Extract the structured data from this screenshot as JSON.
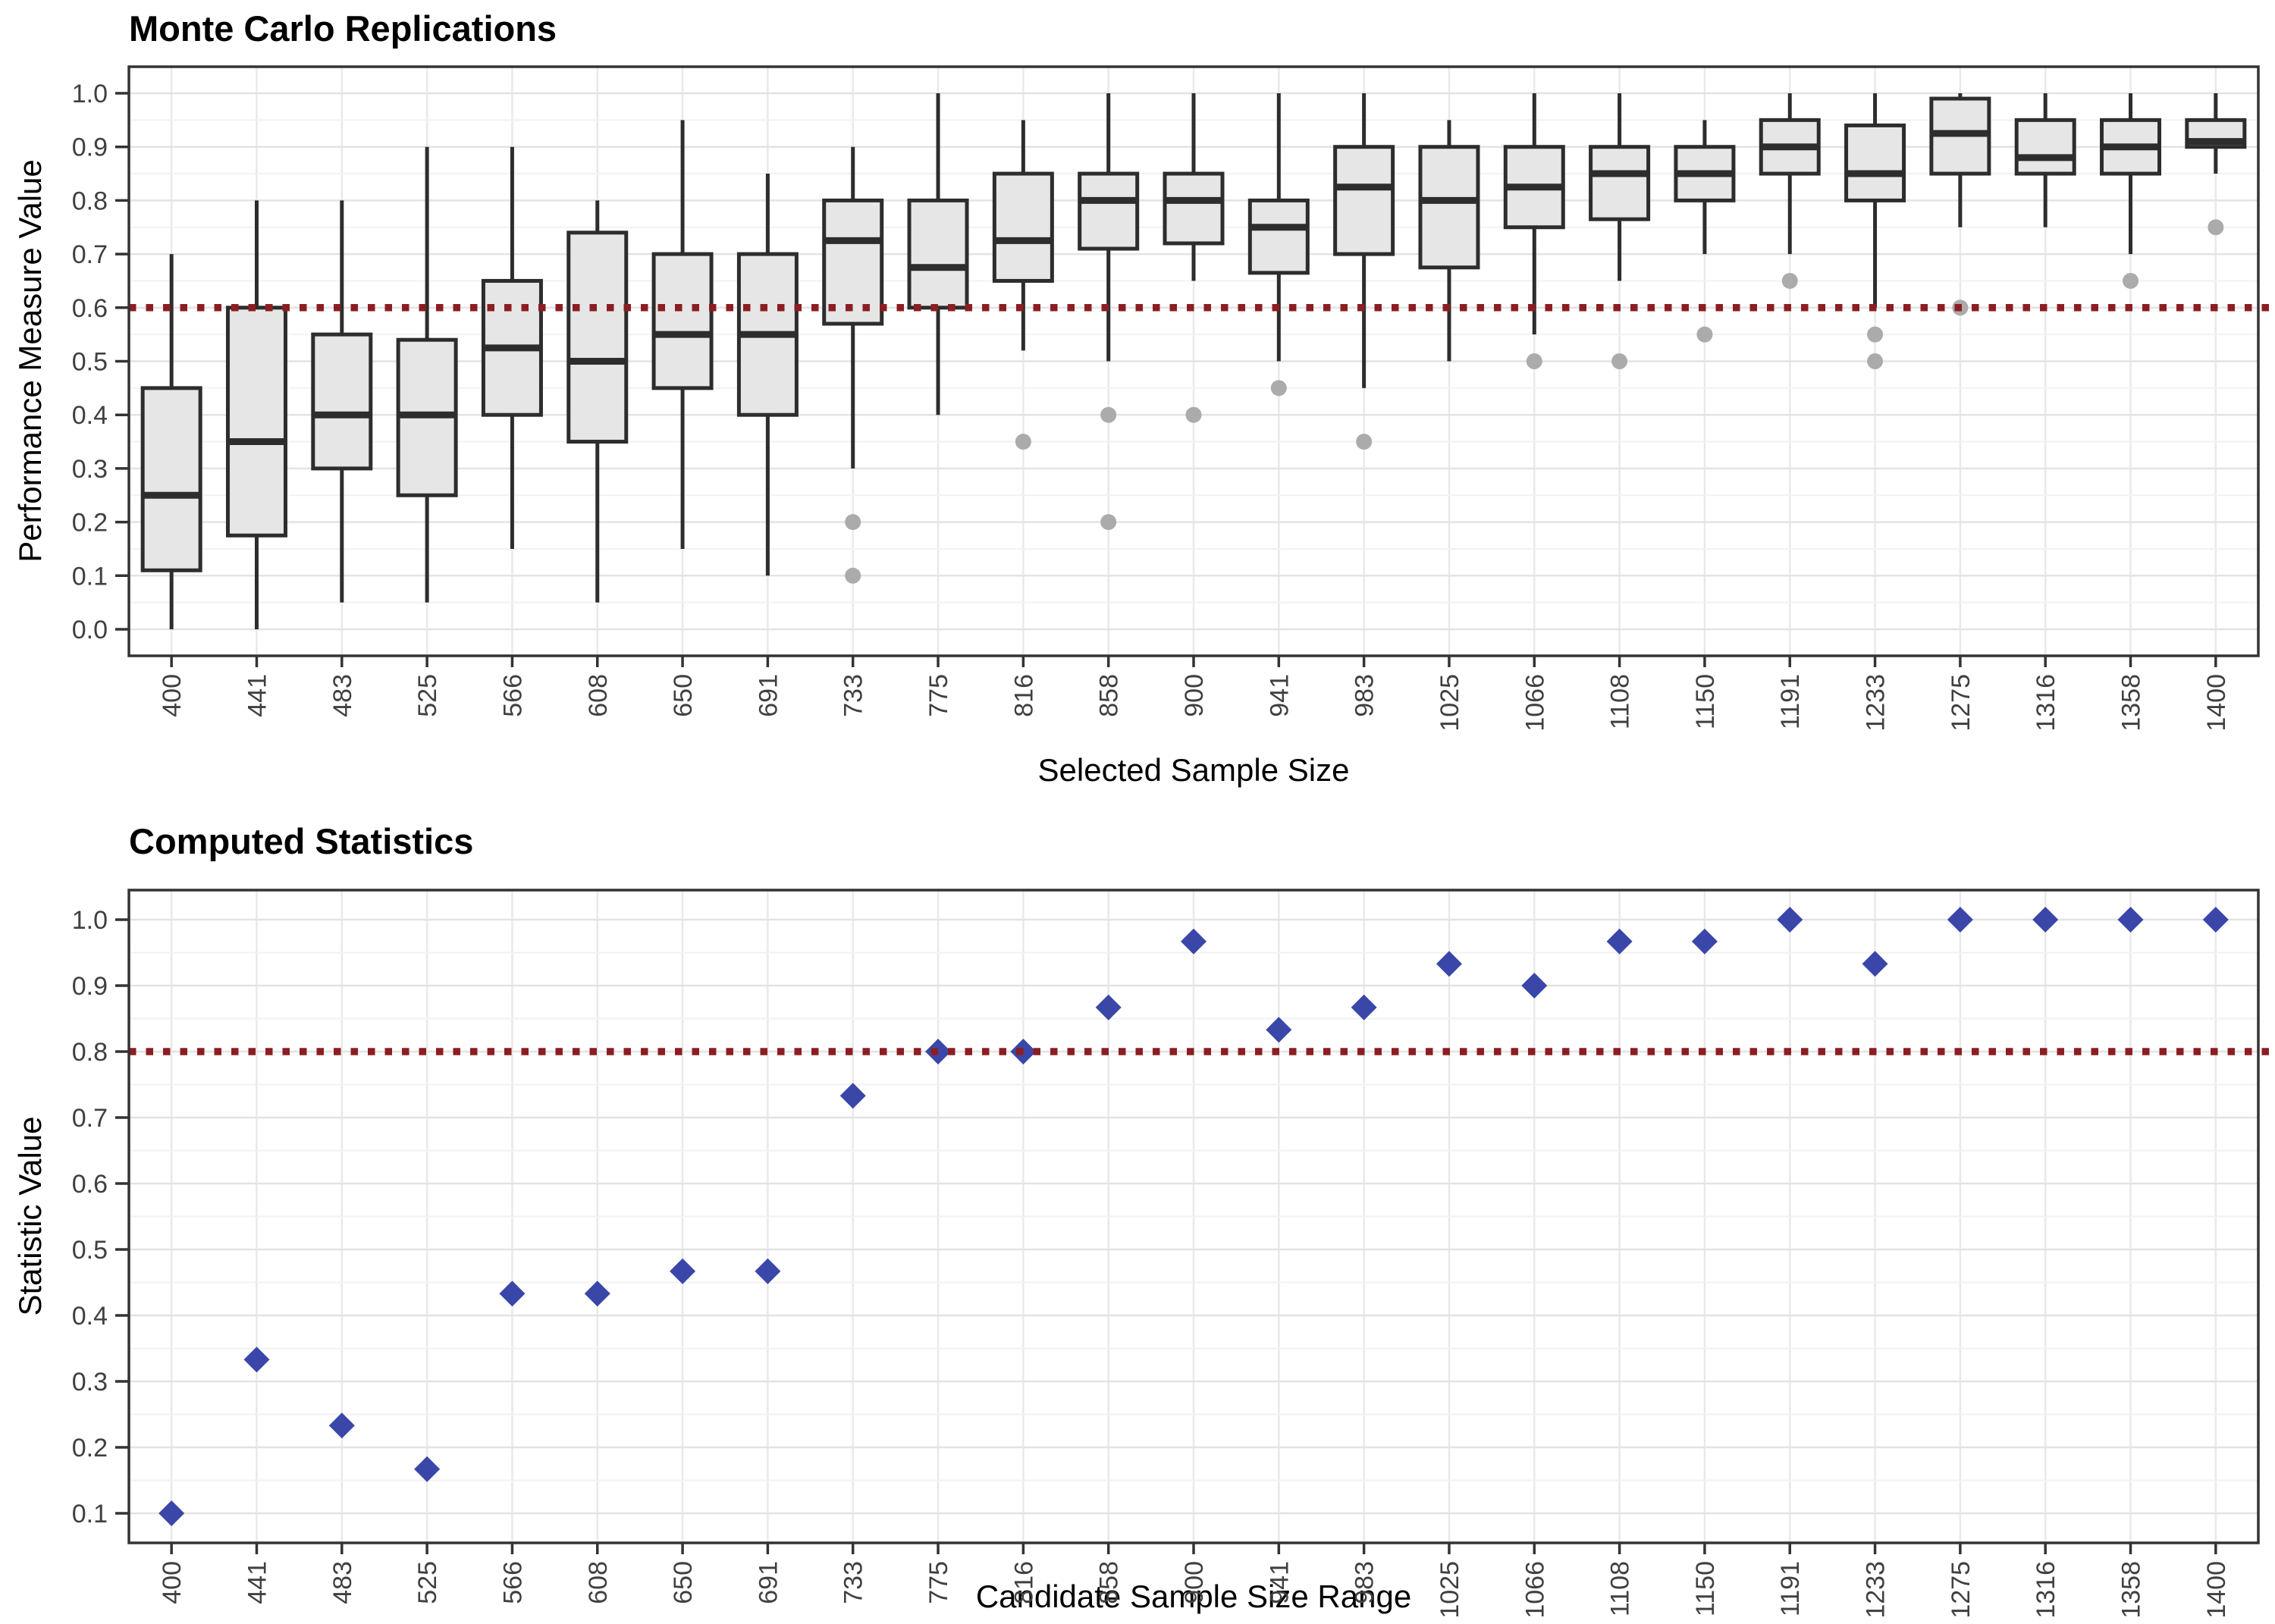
{
  "chart_data": [
    {
      "type": "boxplot",
      "title": "Monte Carlo Replications",
      "xlabel": "Selected Sample Size",
      "ylabel": "Performance Measure Value",
      "ylim": [
        0.0,
        1.0
      ],
      "yticks": [
        0.0,
        0.1,
        0.2,
        0.3,
        0.4,
        0.5,
        0.6,
        0.7,
        0.8,
        0.9,
        1.0
      ],
      "grid": "major and minor horizontal, vertical at categories",
      "legend": "none",
      "threshold": {
        "value": 0.6,
        "style": "dotted",
        "color": "#8B1E22"
      },
      "categories": [
        "400",
        "441",
        "483",
        "525",
        "566",
        "608",
        "650",
        "691",
        "733",
        "775",
        "816",
        "858",
        "900",
        "941",
        "983",
        "1025",
        "1066",
        "1108",
        "1150",
        "1191",
        "1233",
        "1275",
        "1316",
        "1358",
        "1400"
      ],
      "boxes": [
        {
          "label": "400",
          "whisker_min": 0.0,
          "q1": 0.11,
          "median": 0.25,
          "q3": 0.45,
          "whisker_max": 0.7,
          "outliers": []
        },
        {
          "label": "441",
          "whisker_min": 0.0,
          "q1": 0.175,
          "median": 0.35,
          "q3": 0.6,
          "whisker_max": 0.8,
          "outliers": []
        },
        {
          "label": "483",
          "whisker_min": 0.05,
          "q1": 0.3,
          "median": 0.4,
          "q3": 0.55,
          "whisker_max": 0.8,
          "outliers": []
        },
        {
          "label": "525",
          "whisker_min": 0.05,
          "q1": 0.25,
          "median": 0.4,
          "q3": 0.54,
          "whisker_max": 0.9,
          "outliers": []
        },
        {
          "label": "566",
          "whisker_min": 0.15,
          "q1": 0.4,
          "median": 0.525,
          "q3": 0.65,
          "whisker_max": 0.9,
          "outliers": []
        },
        {
          "label": "608",
          "whisker_min": 0.05,
          "q1": 0.35,
          "median": 0.5,
          "q3": 0.74,
          "whisker_max": 0.8,
          "outliers": []
        },
        {
          "label": "650",
          "whisker_min": 0.15,
          "q1": 0.45,
          "median": 0.55,
          "q3": 0.7,
          "whisker_max": 0.95,
          "outliers": []
        },
        {
          "label": "691",
          "whisker_min": 0.1,
          "q1": 0.4,
          "median": 0.55,
          "q3": 0.7,
          "whisker_max": 0.85,
          "outliers": []
        },
        {
          "label": "733",
          "whisker_min": 0.3,
          "q1": 0.57,
          "median": 0.725,
          "q3": 0.8,
          "whisker_max": 0.9,
          "outliers": [
            0.2,
            0.1
          ]
        },
        {
          "label": "775",
          "whisker_min": 0.4,
          "q1": 0.6,
          "median": 0.675,
          "q3": 0.8,
          "whisker_max": 1.0,
          "outliers": []
        },
        {
          "label": "816",
          "whisker_min": 0.52,
          "q1": 0.65,
          "median": 0.725,
          "q3": 0.85,
          "whisker_max": 0.95,
          "outliers": [
            0.35
          ]
        },
        {
          "label": "858",
          "whisker_min": 0.5,
          "q1": 0.71,
          "median": 0.8,
          "q3": 0.85,
          "whisker_max": 1.0,
          "outliers": [
            0.4,
            0.2
          ]
        },
        {
          "label": "900",
          "whisker_min": 0.65,
          "q1": 0.72,
          "median": 0.8,
          "q3": 0.85,
          "whisker_max": 1.0,
          "outliers": [
            0.4
          ]
        },
        {
          "label": "941",
          "whisker_min": 0.5,
          "q1": 0.665,
          "median": 0.75,
          "q3": 0.8,
          "whisker_max": 1.0,
          "outliers": [
            0.45
          ]
        },
        {
          "label": "983",
          "whisker_min": 0.45,
          "q1": 0.7,
          "median": 0.825,
          "q3": 0.9,
          "whisker_max": 1.0,
          "outliers": [
            0.35
          ]
        },
        {
          "label": "1025",
          "whisker_min": 0.5,
          "q1": 0.675,
          "median": 0.8,
          "q3": 0.9,
          "whisker_max": 0.95,
          "outliers": []
        },
        {
          "label": "1066",
          "whisker_min": 0.55,
          "q1": 0.75,
          "median": 0.825,
          "q3": 0.9,
          "whisker_max": 1.0,
          "outliers": [
            0.5
          ]
        },
        {
          "label": "1108",
          "whisker_min": 0.65,
          "q1": 0.765,
          "median": 0.85,
          "q3": 0.9,
          "whisker_max": 1.0,
          "outliers": [
            0.5
          ]
        },
        {
          "label": "1150",
          "whisker_min": 0.7,
          "q1": 0.8,
          "median": 0.85,
          "q3": 0.9,
          "whisker_max": 0.95,
          "outliers": [
            0.55
          ]
        },
        {
          "label": "1191",
          "whisker_min": 0.7,
          "q1": 0.85,
          "median": 0.9,
          "q3": 0.95,
          "whisker_max": 1.0,
          "outliers": [
            0.65
          ]
        },
        {
          "label": "1233",
          "whisker_min": 0.6,
          "q1": 0.8,
          "median": 0.85,
          "q3": 0.94,
          "whisker_max": 1.0,
          "outliers": [
            0.55,
            0.5
          ]
        },
        {
          "label": "1275",
          "whisker_min": 0.75,
          "q1": 0.85,
          "median": 0.925,
          "q3": 0.99,
          "whisker_max": 1.0,
          "outliers": [
            0.6
          ]
        },
        {
          "label": "1316",
          "whisker_min": 0.75,
          "q1": 0.85,
          "median": 0.88,
          "q3": 0.95,
          "whisker_max": 1.0,
          "outliers": []
        },
        {
          "label": "1358",
          "whisker_min": 0.7,
          "q1": 0.85,
          "median": 0.9,
          "q3": 0.95,
          "whisker_max": 1.0,
          "outliers": [
            0.65
          ]
        },
        {
          "label": "1400",
          "whisker_min": 0.85,
          "q1": 0.9,
          "median": 0.91,
          "q3": 0.95,
          "whisker_max": 1.0,
          "outliers": [
            0.75
          ]
        }
      ]
    },
    {
      "type": "scatter",
      "title": "Computed Statistics",
      "xlabel": "Candidate Sample Size Range",
      "ylabel": "Statistic Value",
      "ylim": [
        0.1,
        1.0
      ],
      "yticks": [
        0.1,
        0.2,
        0.3,
        0.4,
        0.5,
        0.6,
        0.7,
        0.8,
        0.9,
        1.0
      ],
      "grid": "major and minor horizontal, vertical at categories",
      "legend": "none",
      "marker": "diamond",
      "threshold": {
        "value": 0.8,
        "style": "dotted",
        "color": "#8B1E22"
      },
      "categories": [
        "400",
        "441",
        "483",
        "525",
        "566",
        "608",
        "650",
        "691",
        "733",
        "775",
        "816",
        "858",
        "900",
        "941",
        "983",
        "1025",
        "1066",
        "1108",
        "1150",
        "1191",
        "1233",
        "1275",
        "1316",
        "1358",
        "1400"
      ],
      "values": [
        0.1,
        0.333,
        0.233,
        0.167,
        0.433,
        0.433,
        0.467,
        0.467,
        0.733,
        0.8,
        0.8,
        0.867,
        0.967,
        0.833,
        0.867,
        0.933,
        0.9,
        0.967,
        0.967,
        1.0,
        0.933,
        1.0,
        1.0,
        1.0,
        1.0
      ]
    }
  ],
  "styles": {
    "background": "#FFFFFF",
    "box_fill": "#E6E6E6",
    "box_stroke": "#2D2D2D",
    "outlier_color": "#ABABAB",
    "diamond_color": "#3A46A8",
    "threshold_color": "#8B1E22",
    "grid_major": "#E3E3E3",
    "grid_minor": "#F2F2F2",
    "grid_vertical": "#E9E9E9",
    "panel_border": "#333333",
    "tick_mark": "#333333",
    "tick_text": "#404040",
    "title_text": "#000000"
  }
}
